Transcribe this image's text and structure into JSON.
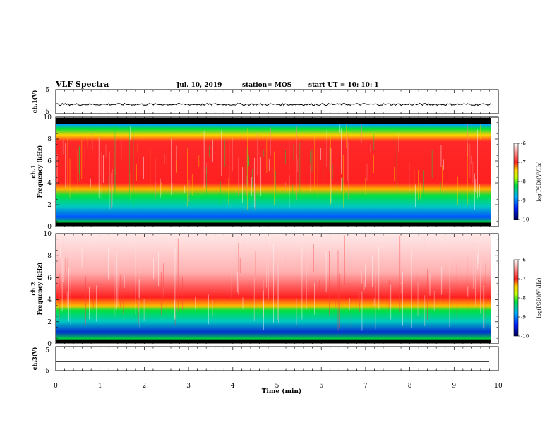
{
  "header": {
    "title": "VLF Spectra",
    "date": "Jul. 10, 2019",
    "station": "station= MOS",
    "start_ut": "start UT =  10: 10: 1"
  },
  "chart_data": [
    {
      "type": "line",
      "name": "ch1-waveform",
      "ylabel": "ch.1(V)",
      "ylim": [
        -5,
        5
      ],
      "yticks": [
        "5",
        "-5"
      ],
      "xlim": [
        0,
        10
      ],
      "trace_level": -1.2
    },
    {
      "type": "heatmap",
      "name": "ch1-spectrogram",
      "ylabel_top": "ch.1",
      "ylabel": "Frequency (kHz)",
      "ylim": [
        0,
        10
      ],
      "yticks": [
        "0",
        "2",
        "4",
        "6",
        "8",
        "10"
      ],
      "xlim": [
        0,
        10
      ],
      "data_end_min": 9.83,
      "bands": [
        {
          "from": 9.4,
          "to": 10,
          "level": "no-data (black)"
        },
        {
          "from": 7.7,
          "to": 9.4,
          "level": "-8 to -7"
        },
        {
          "from": 3.5,
          "to": 7.7,
          "level": "-7 to -6"
        },
        {
          "from": 0.4,
          "to": 3.5,
          "level": "-9 to -8"
        },
        {
          "from": 0,
          "to": 0.4,
          "level": "no-data (black)"
        }
      ],
      "colorbar": {
        "label": "log(PSD)(V²/Hz)",
        "ticks": [
          "-6",
          "-7",
          "-8",
          "-9",
          "-10"
        ],
        "range": [
          -10,
          -6
        ]
      }
    },
    {
      "type": "heatmap",
      "name": "ch2-spectrogram",
      "ylabel_top": "ch.2",
      "ylabel": "Frequency (kHz)",
      "ylim": [
        0,
        10
      ],
      "yticks": [
        "0",
        "2",
        "4",
        "6",
        "8",
        "10"
      ],
      "xlim": [
        0,
        10
      ],
      "data_end_min": 9.83,
      "bands": [
        {
          "from": 4.5,
          "to": 10,
          "level": "-6 (sparse)"
        },
        {
          "from": 3.2,
          "to": 4.5,
          "level": "-7 to -6"
        },
        {
          "from": 0.3,
          "to": 3.2,
          "level": "-9 to -8"
        },
        {
          "from": 0,
          "to": 0.3,
          "level": "no-data (black)"
        }
      ],
      "colorbar": {
        "label": "log(PSD)(V²/Hz)",
        "ticks": [
          "-6",
          "-7",
          "-8",
          "-9",
          "-10"
        ],
        "range": [
          -10,
          -6
        ]
      }
    },
    {
      "type": "line",
      "name": "ch3-waveform",
      "ylabel": "ch.3(V)",
      "ylim": [
        -5,
        5
      ],
      "yticks": [
        "5",
        "-5"
      ],
      "xlim": [
        0,
        10
      ],
      "trace_level": -1.2
    }
  ],
  "x_axis": {
    "label": "Time (min)",
    "ticks": [
      "0",
      "1",
      "2",
      "3",
      "4",
      "5",
      "6",
      "7",
      "8",
      "9",
      "10"
    ]
  },
  "colors": {
    "no_data": "#000000",
    "level_m6": "#ffffff",
    "level_m7": "#ff2020",
    "level_m8": "#00e040",
    "level_m9": "#0060ff",
    "level_m10": "#000070"
  }
}
